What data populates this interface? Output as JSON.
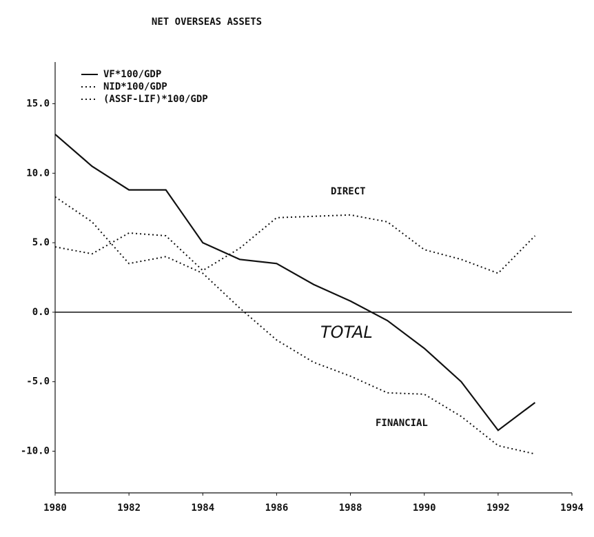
{
  "chart_data": {
    "type": "line",
    "title": "NET OVERSEAS ASSETS",
    "x": [
      1980,
      1981,
      1982,
      1983,
      1984,
      1985,
      1986,
      1987,
      1988,
      1989,
      1990,
      1991,
      1992,
      1993
    ],
    "series": [
      {
        "name": "VF*100/GDP",
        "color": "#111111",
        "dash": "solid",
        "values": [
          12.8,
          10.5,
          8.8,
          8.8,
          5.0,
          3.8,
          3.5,
          2.0,
          0.8,
          -0.6,
          -2.6,
          -5.0,
          -8.5,
          -6.5
        ]
      },
      {
        "name": "NID*100/GDP",
        "color": "#111111",
        "dash": "dotted",
        "values": [
          4.7,
          4.2,
          5.7,
          5.5,
          3.0,
          4.6,
          6.8,
          6.9,
          7.0,
          6.5,
          4.5,
          3.8,
          2.8,
          5.5
        ]
      },
      {
        "name": "(ASSF-LIF)*100/GDP",
        "color": "#111111",
        "dash": "dotted",
        "values": [
          8.3,
          6.5,
          3.5,
          4.0,
          2.8,
          0.3,
          -2.0,
          -3.6,
          -4.6,
          -5.8,
          -5.9,
          -7.5,
          -9.6,
          -10.2
        ]
      }
    ],
    "annotations": [
      "DIRECT",
      "TOTAL",
      "FINANCIAL"
    ],
    "xlim": [
      1980,
      1994
    ],
    "xticks": [
      1980,
      1982,
      1984,
      1986,
      1988,
      1990,
      1992,
      1994
    ],
    "ylim": [
      -13,
      18
    ],
    "yticks": [
      {
        "value": -10,
        "label": "-10.0"
      },
      {
        "value": -5,
        "label": "-5.0"
      },
      {
        "value": 0,
        "label": "0.0"
      },
      {
        "value": 5,
        "label": "5.0"
      },
      {
        "value": 10,
        "label": "10.0"
      },
      {
        "value": 15,
        "label": "15.0"
      }
    ],
    "zero_line": true,
    "legend": "upper left"
  }
}
